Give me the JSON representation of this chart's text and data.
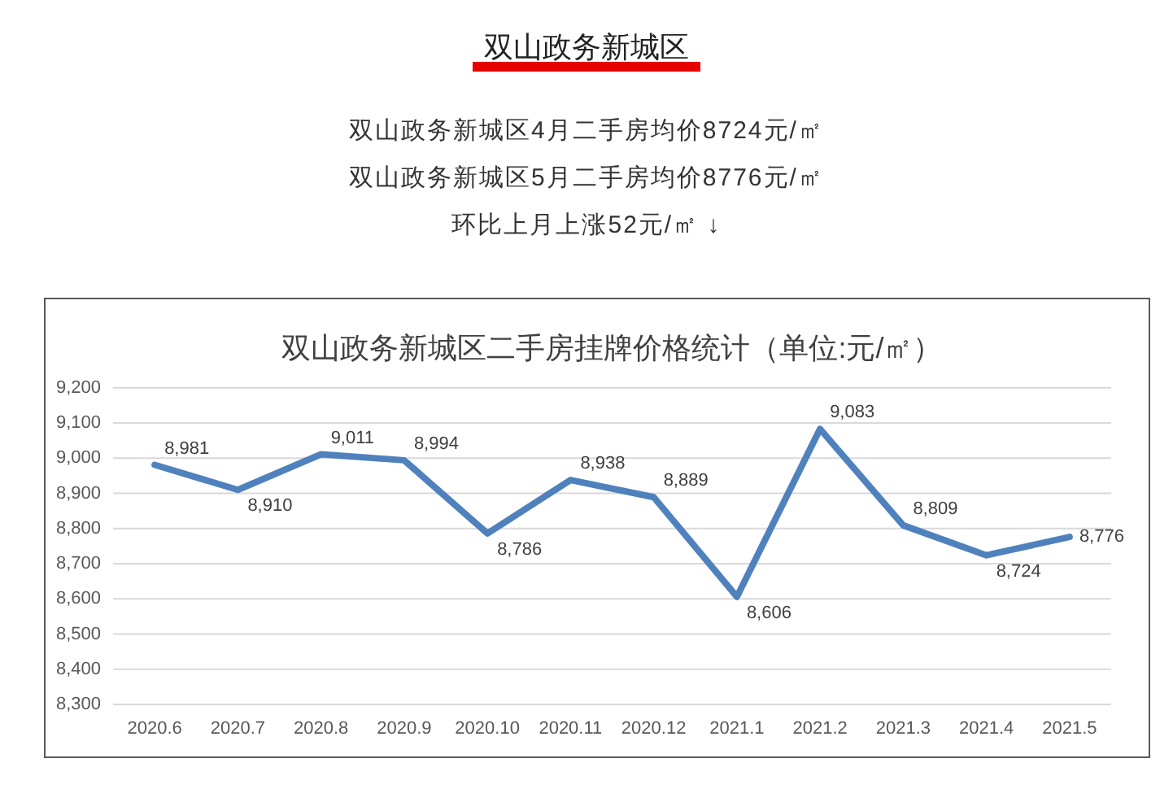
{
  "chart_data": [
    {
      "type": "other",
      "title": "双山政务新城区",
      "annotations": [
        "双山政务新城区4月二手房均价8724元/㎡",
        "双山政务新城区5月二手房均价8776元/㎡",
        "环比上月上涨52元/㎡ ↓"
      ]
    },
    {
      "type": "line",
      "title": "双山政务新城区二手房挂牌价格统计（单位:元/㎡）",
      "categories": [
        "2020.6",
        "2020.7",
        "2020.8",
        "2020.9",
        "2020.10",
        "2020.11",
        "2020.12",
        "2021.1",
        "2021.2",
        "2021.3",
        "2021.4",
        "2021.5"
      ],
      "series": [
        {
          "color": "#4f81bd",
          "values": [
            8981,
            8910,
            9011,
            8994,
            8786,
            8938,
            8889,
            8606,
            9083,
            8809,
            8724,
            8776
          ],
          "value_labels": [
            "8,981",
            "8,910",
            "9,011",
            "8,994",
            "8,786",
            "8,938",
            "8,889",
            "8,606",
            "9,083",
            "8,809",
            "8,724",
            "8,776"
          ]
        }
      ],
      "ylim": [
        8300,
        9200
      ],
      "yticks": [
        {
          "value": 8300,
          "label": "8,300"
        },
        {
          "value": 8400,
          "label": "8,400"
        },
        {
          "value": 8500,
          "label": "8,500"
        },
        {
          "value": 8600,
          "label": "8,600"
        },
        {
          "value": 8700,
          "label": "8,700"
        },
        {
          "value": 8800,
          "label": "8,800"
        },
        {
          "value": 8900,
          "label": "8,900"
        },
        {
          "value": 9000,
          "label": "9,000"
        },
        {
          "value": 9100,
          "label": "9,100"
        },
        {
          "value": 9200,
          "label": "9,200"
        }
      ],
      "grid": "y"
    }
  ]
}
